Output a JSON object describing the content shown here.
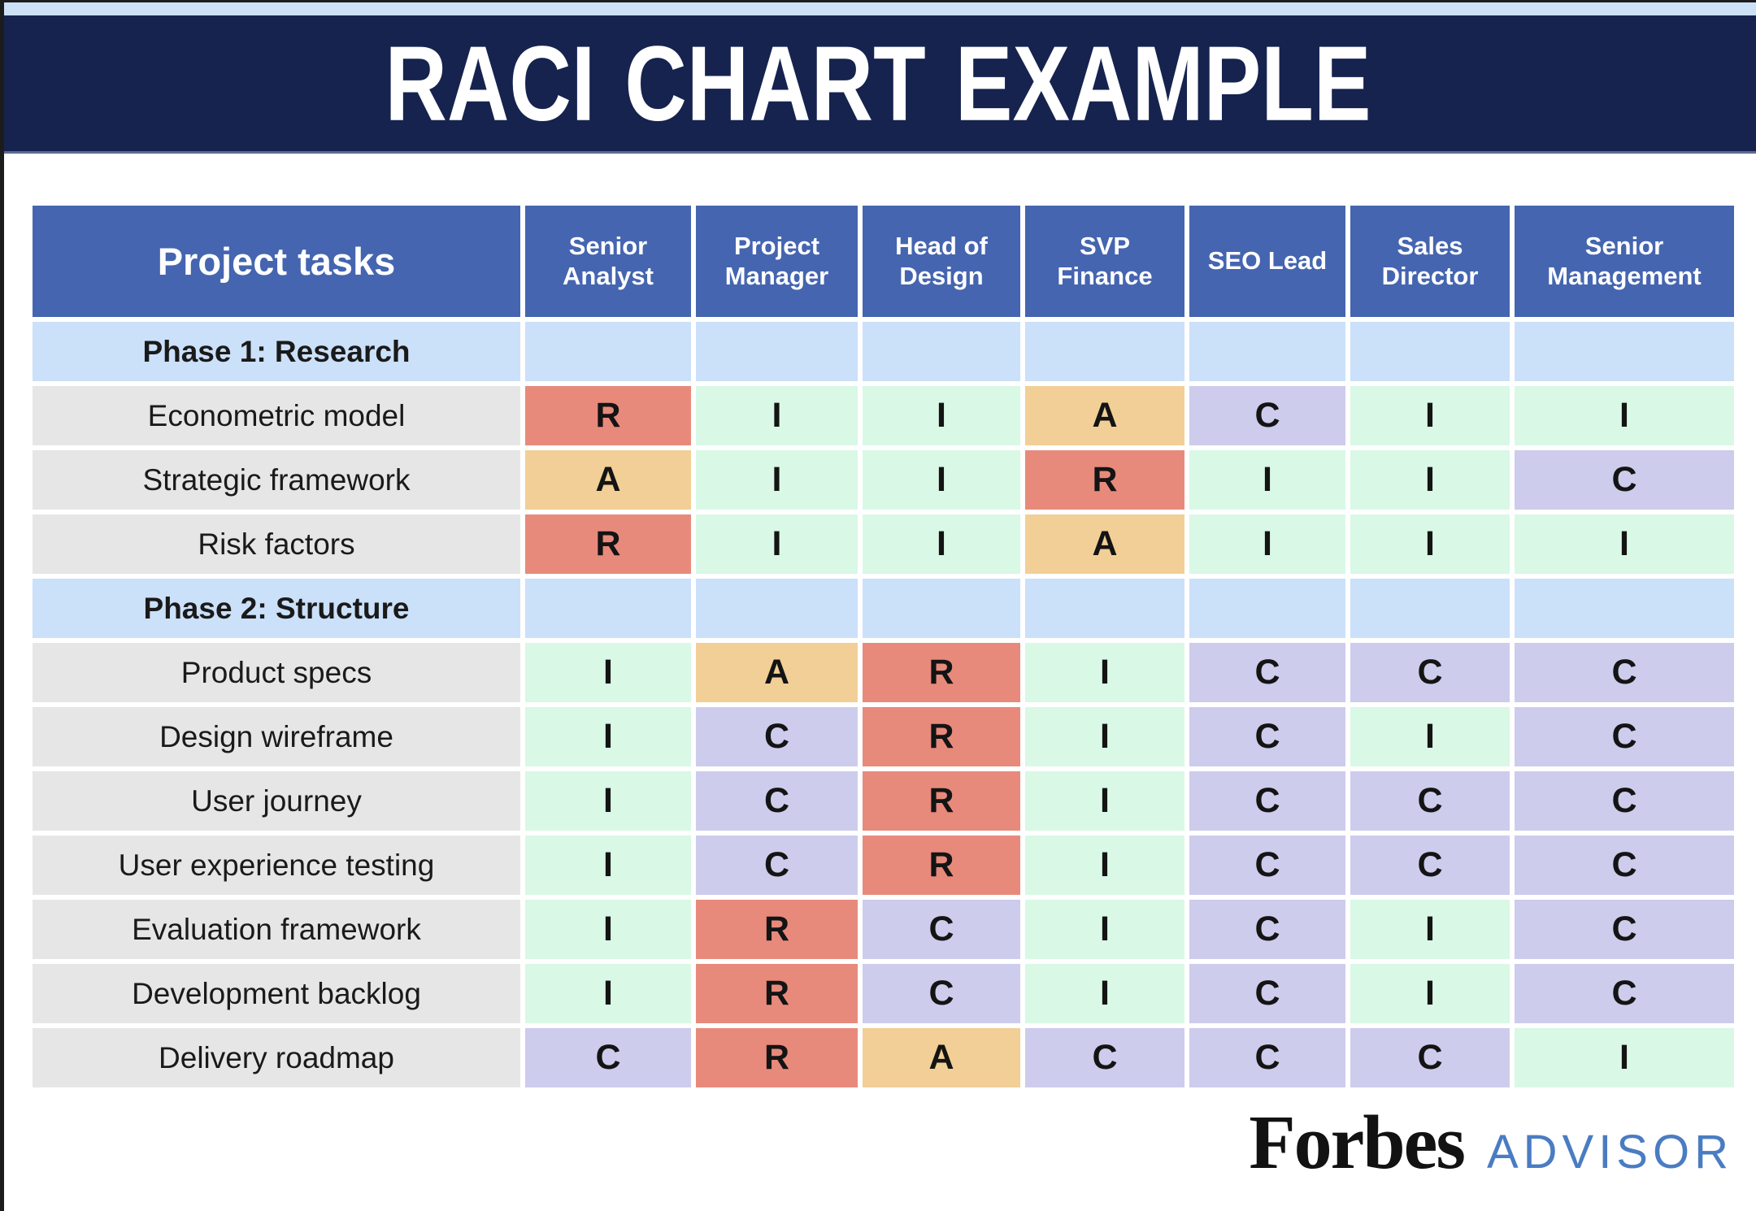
{
  "title": "RACI CHART EXAMPLE",
  "raci_colors": {
    "R": "#E88A7B",
    "A": "#F2CF96",
    "C": "#CDCCEC",
    "I": "#D9F8E6"
  },
  "theme_colors": {
    "top_strip": "#CCE0F8",
    "title_band": "#16234E",
    "header_cell": "#4565B0",
    "phase_row": "#CBE0F9",
    "task_label_row": "#E6E6E6",
    "title_text": "#FFFFFF",
    "advisor_text": "#4A7CC2"
  },
  "chart_data": {
    "type": "table",
    "title": "RACI CHART EXAMPLE",
    "task_column_header": "Project tasks",
    "role_columns": [
      "Senior Analyst",
      "Project Manager",
      "Head of Design",
      "SVP Finance",
      "SEO Lead",
      "Sales Director",
      "Senior Management"
    ],
    "rows": [
      {
        "type": "phase",
        "label": "Phase 1: Research",
        "values": []
      },
      {
        "type": "task",
        "label": "Econometric model",
        "values": [
          "R",
          "I",
          "I",
          "A",
          "C",
          "I",
          "I"
        ]
      },
      {
        "type": "task",
        "label": "Strategic framework",
        "values": [
          "A",
          "I",
          "I",
          "R",
          "I",
          "I",
          "C"
        ]
      },
      {
        "type": "task",
        "label": "Risk factors",
        "values": [
          "R",
          "I",
          "I",
          "A",
          "I",
          "I",
          "I"
        ]
      },
      {
        "type": "phase",
        "label": "Phase 2: Structure",
        "values": []
      },
      {
        "type": "task",
        "label": "Product specs",
        "values": [
          "I",
          "A",
          "R",
          "I",
          "C",
          "C",
          "C"
        ]
      },
      {
        "type": "task",
        "label": "Design wireframe",
        "values": [
          "I",
          "C",
          "R",
          "I",
          "C",
          "I",
          "C"
        ]
      },
      {
        "type": "task",
        "label": "User journey",
        "values": [
          "I",
          "C",
          "R",
          "I",
          "C",
          "C",
          "C"
        ]
      },
      {
        "type": "task",
        "label": "User experience testing",
        "values": [
          "I",
          "C",
          "R",
          "I",
          "C",
          "C",
          "C"
        ]
      },
      {
        "type": "task",
        "label": "Evaluation framework",
        "values": [
          "I",
          "R",
          "C",
          "I",
          "C",
          "I",
          "C"
        ]
      },
      {
        "type": "task",
        "label": "Development backlog",
        "values": [
          "I",
          "R",
          "C",
          "I",
          "C",
          "I",
          "C"
        ]
      },
      {
        "type": "task",
        "label": "Delivery roadmap",
        "values": [
          "C",
          "R",
          "A",
          "C",
          "C",
          "C",
          "I"
        ]
      }
    ]
  },
  "footer": {
    "brand": "Forbes",
    "brand_suffix": "ADVISOR"
  }
}
